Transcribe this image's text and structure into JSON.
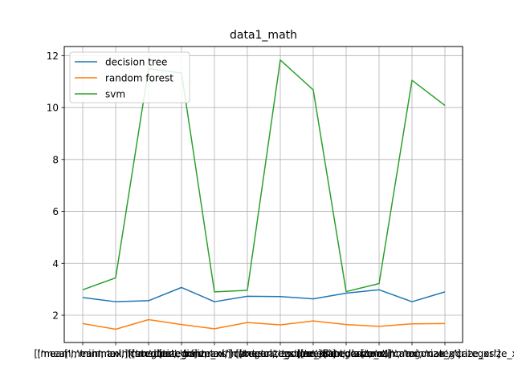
{
  "chart_data": {
    "type": "line",
    "title": "data1_math",
    "xlabel": "",
    "ylabel": "",
    "grid": true,
    "legend_position": "top-left",
    "ylim": [
      0.95,
      12.35
    ],
    "yticks": [
      2,
      4,
      6,
      8,
      10,
      12
    ],
    "ytick_labels": [
      "2",
      "4",
      "6",
      "8",
      "10",
      "12"
    ],
    "categories": [
      "['mean', 'minmax']",
      "['mean', 'minmax', 'categorize_x']",
      "['mean', 'minmax', 'categorize_xs']",
      "['median', 'minmax']",
      "['median', 'minmax', 'categorize_x']",
      "['median', 'minmax', 'categorize_xs']",
      "['mean', 'zscore']",
      "['mean', 'zscore', 'categorize_x']",
      "['median', 'zscore']",
      "['median', 'zscore', 'categorize_x']",
      "['median', 'minmax', 'categorize_xs']",
      "['mean', 'minmax', 'categorize_xs']"
    ],
    "series": [
      {
        "name": "decision tree",
        "color": "#1f77b4",
        "values": [
          2.68,
          2.52,
          2.56,
          3.07,
          2.52,
          2.73,
          2.72,
          2.63,
          2.85,
          2.98,
          2.52,
          2.9
        ]
      },
      {
        "name": "random forest",
        "color": "#ff7f0e",
        "values": [
          1.68,
          1.46,
          1.83,
          1.64,
          1.48,
          1.72,
          1.63,
          1.78,
          1.64,
          1.57,
          1.67,
          1.68
        ]
      },
      {
        "name": "svm",
        "color": "#2ca02c",
        "values": [
          2.98,
          3.44,
          11.5,
          11.33,
          2.9,
          2.96,
          11.83,
          10.68,
          2.91,
          3.22,
          11.05,
          10.08
        ]
      }
    ]
  }
}
